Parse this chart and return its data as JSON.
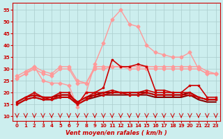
{
  "x": [
    0,
    1,
    2,
    3,
    4,
    5,
    6,
    7,
    8,
    9,
    10,
    11,
    12,
    13,
    14,
    15,
    16,
    17,
    18,
    19,
    20,
    21,
    22,
    23
  ],
  "series": [
    {
      "name": "rafales_max",
      "color": "#ff9999",
      "lw": 1.0,
      "marker": "D",
      "ms": 2.5,
      "values": [
        26,
        28,
        31,
        25,
        24,
        24,
        23,
        14,
        20,
        32,
        41,
        51,
        55,
        49,
        48,
        40,
        37,
        36,
        35,
        35,
        37,
        30,
        28,
        28
      ]
    },
    {
      "name": "rafales_mid1",
      "color": "#ff9999",
      "lw": 1.0,
      "marker": "D",
      "ms": 2.5,
      "values": [
        27,
        29,
        31,
        29,
        28,
        31,
        31,
        25,
        24,
        31,
        31,
        31,
        31,
        31,
        31,
        31,
        31,
        31,
        31,
        31,
        31,
        31,
        29,
        28
      ]
    },
    {
      "name": "rafales_mid2",
      "color": "#ff9999",
      "lw": 1.0,
      "marker": "D",
      "ms": 2.5,
      "values": [
        26,
        28,
        30,
        28,
        27,
        30,
        30,
        24,
        24,
        30,
        30,
        31,
        31,
        30,
        30,
        30,
        30,
        30,
        30,
        30,
        30,
        30,
        28,
        28
      ]
    },
    {
      "name": "vent_moyen_high",
      "color": "#cc0000",
      "lw": 1.2,
      "marker": "s",
      "ms": 2.0,
      "values": [
        16,
        18,
        20,
        18,
        18,
        20,
        20,
        15,
        20,
        20,
        22,
        34,
        31,
        31,
        32,
        31,
        21,
        21,
        20,
        20,
        23,
        23,
        18,
        18
      ]
    },
    {
      "name": "vent_moyen_low1",
      "color": "#cc0000",
      "lw": 1.2,
      "marker": "s",
      "ms": 2.0,
      "values": [
        16,
        18,
        19,
        18,
        17,
        19,
        19,
        16,
        18,
        20,
        20,
        21,
        20,
        20,
        20,
        21,
        20,
        20,
        20,
        20,
        20,
        18,
        17,
        17
      ]
    },
    {
      "name": "vent_moyen_low2",
      "color": "#cc0000",
      "lw": 1.2,
      "marker": "s",
      "ms": 2.0,
      "values": [
        15,
        17,
        18,
        17,
        17,
        18,
        18,
        15,
        17,
        19,
        19,
        20,
        20,
        19,
        19,
        20,
        19,
        19,
        19,
        19,
        19,
        18,
        17,
        17
      ]
    },
    {
      "name": "vent_moyen_base",
      "color": "#880000",
      "lw": 1.5,
      "marker": null,
      "ms": 0,
      "values": [
        16,
        18,
        19,
        18,
        18,
        19,
        19,
        16,
        18,
        19,
        20,
        20,
        20,
        20,
        20,
        20,
        19,
        19,
        19,
        19,
        20,
        18,
        17,
        17
      ]
    },
    {
      "name": "vent_moyen_base2",
      "color": "#880000",
      "lw": 1.5,
      "marker": null,
      "ms": 0,
      "values": [
        15,
        17,
        18,
        17,
        17,
        18,
        18,
        15,
        17,
        18,
        19,
        19,
        19,
        19,
        19,
        19,
        18,
        18,
        18,
        18,
        19,
        17,
        16,
        16
      ]
    }
  ],
  "wind_arrows_x": [
    0,
    1,
    2,
    3,
    4,
    5,
    6,
    7,
    8,
    9,
    10,
    11,
    12,
    13,
    14,
    15,
    16,
    17,
    18,
    19,
    20,
    21,
    22,
    23
  ],
  "xlabel": "Vent moyen/en rafales ( km/h )",
  "ylim": [
    8,
    58
  ],
  "yticks": [
    10,
    15,
    20,
    25,
    30,
    35,
    40,
    45,
    50,
    55
  ],
  "xlim": [
    -0.5,
    23.5
  ],
  "xticks": [
    0,
    1,
    2,
    3,
    4,
    5,
    6,
    7,
    8,
    9,
    10,
    11,
    12,
    13,
    14,
    15,
    16,
    17,
    18,
    19,
    20,
    21,
    22,
    23
  ],
  "bg_color": "#cceeee",
  "grid_color": "#aacccc",
  "text_color": "#cc0000",
  "axis_color": "#cc0000"
}
